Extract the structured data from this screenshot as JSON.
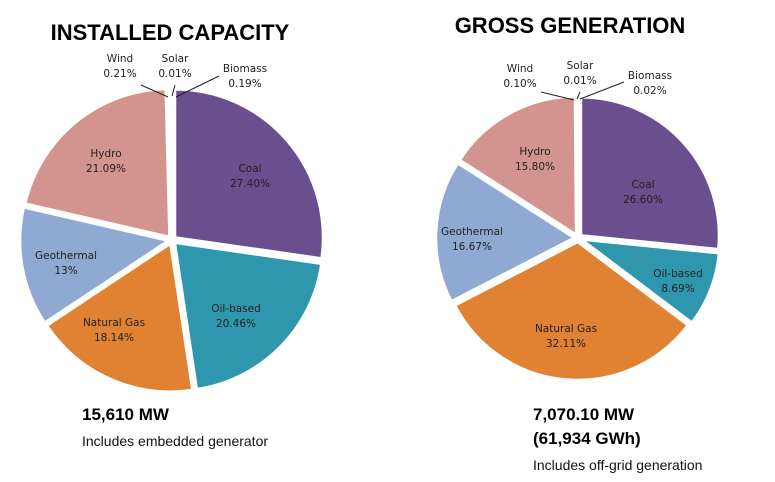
{
  "chart_data": [
    {
      "type": "pie",
      "title": "INSTALLED CAPACITY",
      "categories": [
        "Coal",
        "Oil-based",
        "Natural Gas",
        "Geothermal",
        "Hydro",
        "Wind",
        "Solar",
        "Biomass"
      ],
      "values": [
        27.4,
        20.46,
        18.14,
        13,
        21.09,
        0.21,
        0.01,
        0.19
      ],
      "value_labels": [
        "27.40%",
        "20.46%",
        "18.14%",
        "13%",
        "21.09%",
        "0.21%",
        "0.01%",
        "0.19%"
      ],
      "colors": [
        "#6a4f8e",
        "#2f97ad",
        "#e08231",
        "#8fa9d3",
        "#d39490",
        "#4a7aa8",
        "#6f9a3f",
        "#6e9c4a"
      ],
      "total": "15,610 MW",
      "note": "Includes embedded generator"
    },
    {
      "type": "pie",
      "title": "GROSS GENERATION",
      "categories": [
        "Coal",
        "Oil-based",
        "Natural Gas",
        "Geothermal",
        "Hydro",
        "Wind",
        "Solar",
        "Biomass"
      ],
      "values": [
        26.6,
        8.69,
        32.11,
        16.67,
        15.8,
        0.1,
        0.01,
        0.02
      ],
      "value_labels": [
        "26.60%",
        "8.69%",
        "32.11%",
        "16.67%",
        "15.80%",
        "0.10%",
        "0.01%",
        "0.02%"
      ],
      "colors": [
        "#6a4f8e",
        "#2f97ad",
        "#e08231",
        "#8fa9d3",
        "#d39490",
        "#4a7aa8",
        "#6f9a3f",
        "#6e9c4a"
      ],
      "total": "7,070.10 MW",
      "total2": "(61,934 GWh)",
      "note": "Includes off-grid generation"
    }
  ]
}
